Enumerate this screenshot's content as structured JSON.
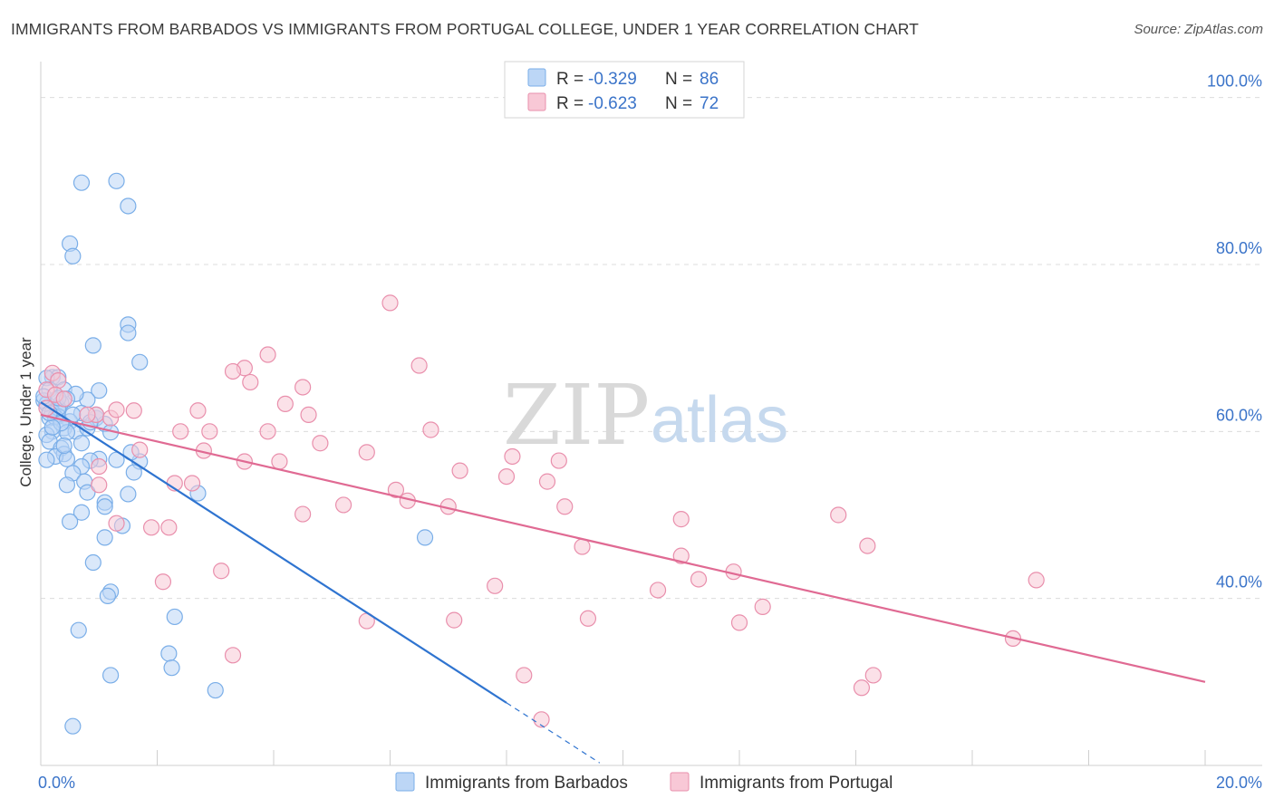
{
  "header": {
    "title": "IMMIGRANTS FROM BARBADOS VS IMMIGRANTS FROM PORTUGAL COLLEGE, UNDER 1 YEAR CORRELATION CHART",
    "source": "Source: ZipAtlas.com"
  },
  "watermark": {
    "zip": "ZIP",
    "atlas": "atlas"
  },
  "stats": [
    {
      "r_label": "R =",
      "r_value": "-0.329",
      "n_label": "N =",
      "n_value": "86",
      "color": "#7aaee8",
      "fill": "#bcd6f6"
    },
    {
      "r_label": "R =",
      "r_value": "-0.623",
      "n_label": "N =",
      "n_value": "72",
      "color": "#e98fac",
      "fill": "#f8c8d6"
    }
  ],
  "chart_data": {
    "type": "scatter",
    "title": "IMMIGRANTS FROM BARBADOS VS IMMIGRANTS FROM PORTUGAL COLLEGE, UNDER 1 YEAR CORRELATION CHART",
    "xlabel": "",
    "ylabel": "College, Under 1 year",
    "xlim": [
      0,
      20
    ],
    "ylim": [
      20,
      103
    ],
    "x_tick_labels": [
      "0.0%",
      "20.0%"
    ],
    "y_ticks": [
      40,
      60,
      80,
      100
    ],
    "y_tick_labels": [
      "40.0%",
      "60.0%",
      "80.0%",
      "100.0%"
    ],
    "grid": true,
    "legend_position": "bottom",
    "series": [
      {
        "name": "Immigrants from Barbados",
        "color": "#7aaee8",
        "fill": "#bcd6f6",
        "trend_color": "#2f74d0",
        "trend": {
          "x0": 0.0,
          "y0": 63.5,
          "x1": 8.0,
          "y1": 27.5,
          "dash_to_x": 9.6
        },
        "points": [
          [
            1.3,
            90.0
          ],
          [
            0.7,
            89.8
          ],
          [
            1.5,
            87.0
          ],
          [
            0.5,
            82.5
          ],
          [
            0.55,
            81.0
          ],
          [
            1.5,
            72.8
          ],
          [
            1.5,
            71.8
          ],
          [
            0.9,
            70.3
          ],
          [
            1.7,
            68.3
          ],
          [
            0.2,
            66.5
          ],
          [
            0.3,
            66.5
          ],
          [
            0.1,
            66.4
          ],
          [
            0.4,
            65.0
          ],
          [
            1.0,
            64.9
          ],
          [
            0.15,
            65.0
          ],
          [
            0.25,
            63.8
          ],
          [
            0.05,
            63.7
          ],
          [
            0.1,
            63.3
          ],
          [
            0.35,
            63.4
          ],
          [
            0.8,
            63.8
          ],
          [
            0.3,
            62.5
          ],
          [
            0.2,
            62.3
          ],
          [
            0.7,
            62.2
          ],
          [
            0.15,
            61.6
          ],
          [
            0.3,
            61.8
          ],
          [
            0.5,
            61.2
          ],
          [
            0.95,
            61.6
          ],
          [
            0.25,
            61.7
          ],
          [
            1.1,
            60.9
          ],
          [
            0.4,
            60.4
          ],
          [
            0.6,
            60.0
          ],
          [
            0.45,
            59.9
          ],
          [
            0.2,
            60.0
          ],
          [
            0.1,
            59.6
          ],
          [
            0.8,
            60.4
          ],
          [
            0.15,
            58.8
          ],
          [
            0.35,
            58.0
          ],
          [
            0.4,
            57.3
          ],
          [
            0.25,
            57.0
          ],
          [
            0.45,
            56.7
          ],
          [
            1.0,
            56.7
          ],
          [
            1.3,
            56.6
          ],
          [
            0.85,
            56.5
          ],
          [
            1.7,
            56.4
          ],
          [
            1.55,
            57.5
          ],
          [
            0.1,
            56.6
          ],
          [
            0.7,
            55.8
          ],
          [
            0.55,
            55.0
          ],
          [
            1.6,
            55.1
          ],
          [
            0.75,
            54.0
          ],
          [
            0.45,
            53.6
          ],
          [
            0.8,
            52.7
          ],
          [
            1.5,
            52.5
          ],
          [
            2.7,
            52.6
          ],
          [
            1.1,
            51.5
          ],
          [
            1.1,
            51.0
          ],
          [
            0.7,
            50.3
          ],
          [
            0.5,
            49.2
          ],
          [
            1.4,
            48.7
          ],
          [
            1.1,
            47.3
          ],
          [
            6.6,
            47.3
          ],
          [
            0.9,
            44.3
          ],
          [
            1.2,
            40.8
          ],
          [
            1.15,
            40.3
          ],
          [
            2.3,
            37.8
          ],
          [
            0.65,
            36.2
          ],
          [
            2.2,
            33.4
          ],
          [
            2.25,
            31.7
          ],
          [
            1.2,
            30.8
          ],
          [
            3.0,
            29.0
          ],
          [
            0.55,
            24.7
          ],
          [
            0.35,
            61.0
          ],
          [
            0.6,
            64.5
          ],
          [
            0.05,
            64.2
          ],
          [
            0.95,
            62.0
          ],
          [
            0.4,
            58.3
          ],
          [
            0.3,
            62.8
          ],
          [
            0.2,
            60.5
          ],
          [
            0.55,
            62.0
          ],
          [
            0.7,
            58.6
          ],
          [
            1.2,
            59.9
          ],
          [
            0.3,
            64.0
          ],
          [
            0.15,
            62.2
          ],
          [
            0.45,
            63.9
          ],
          [
            0.85,
            61.1
          ]
        ]
      },
      {
        "name": "Immigrants from Portugal",
        "color": "#e98fac",
        "fill": "#f8c8d6",
        "trend_color": "#e06a93",
        "trend": {
          "x0": 0.0,
          "y0": 62.0,
          "x1": 20.0,
          "y1": 30.0
        },
        "points": [
          [
            0.2,
            67.0
          ],
          [
            0.3,
            66.1
          ],
          [
            0.1,
            65.0
          ],
          [
            0.25,
            64.4
          ],
          [
            0.4,
            63.9
          ],
          [
            0.95,
            62.0
          ],
          [
            1.2,
            61.6
          ],
          [
            1.6,
            62.5
          ],
          [
            0.8,
            62.0
          ],
          [
            0.1,
            62.8
          ],
          [
            6.0,
            75.4
          ],
          [
            3.9,
            69.2
          ],
          [
            3.5,
            67.6
          ],
          [
            3.3,
            67.2
          ],
          [
            6.5,
            67.9
          ],
          [
            3.6,
            65.9
          ],
          [
            4.5,
            65.3
          ],
          [
            4.2,
            63.3
          ],
          [
            1.3,
            62.6
          ],
          [
            2.7,
            62.5
          ],
          [
            4.6,
            62.0
          ],
          [
            2.4,
            60.0
          ],
          [
            2.9,
            60.0
          ],
          [
            3.9,
            60.0
          ],
          [
            6.7,
            60.2
          ],
          [
            4.8,
            58.6
          ],
          [
            1.7,
            57.8
          ],
          [
            2.8,
            57.7
          ],
          [
            5.6,
            57.5
          ],
          [
            8.1,
            57.0
          ],
          [
            3.5,
            56.4
          ],
          [
            4.1,
            56.4
          ],
          [
            8.9,
            56.5
          ],
          [
            7.2,
            55.3
          ],
          [
            8.0,
            54.6
          ],
          [
            8.7,
            54.0
          ],
          [
            2.3,
            53.8
          ],
          [
            2.6,
            53.8
          ],
          [
            1.0,
            53.6
          ],
          [
            6.1,
            53.0
          ],
          [
            6.3,
            51.7
          ],
          [
            5.2,
            51.2
          ],
          [
            7.0,
            51.0
          ],
          [
            9.0,
            51.0
          ],
          [
            4.5,
            50.1
          ],
          [
            11.0,
            49.5
          ],
          [
            13.7,
            50.0
          ],
          [
            1.3,
            49.0
          ],
          [
            1.9,
            48.5
          ],
          [
            2.2,
            48.5
          ],
          [
            9.3,
            46.2
          ],
          [
            14.2,
            46.3
          ],
          [
            11.0,
            45.1
          ],
          [
            3.1,
            43.3
          ],
          [
            11.9,
            43.2
          ],
          [
            17.1,
            42.2
          ],
          [
            2.1,
            42.0
          ],
          [
            11.3,
            42.3
          ],
          [
            7.8,
            41.5
          ],
          [
            10.6,
            41.0
          ],
          [
            12.4,
            39.0
          ],
          [
            9.4,
            37.6
          ],
          [
            5.6,
            37.3
          ],
          [
            7.1,
            37.4
          ],
          [
            12.0,
            37.1
          ],
          [
            16.7,
            35.2
          ],
          [
            3.3,
            33.2
          ],
          [
            8.3,
            30.8
          ],
          [
            14.3,
            30.8
          ],
          [
            14.1,
            29.3
          ],
          [
            8.6,
            25.5
          ],
          [
            1.0,
            55.8
          ]
        ]
      }
    ]
  }
}
